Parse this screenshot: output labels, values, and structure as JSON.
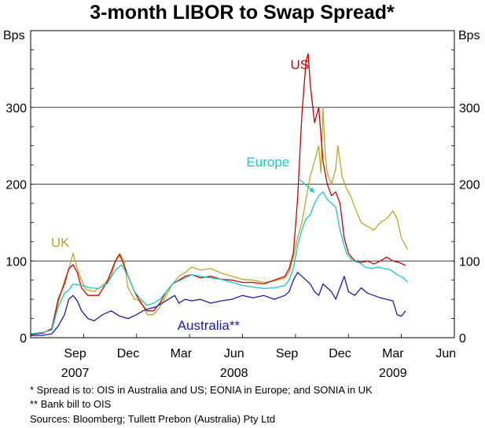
{
  "chart_data": {
    "type": "line",
    "title": "3-month LIBOR to Swap Spread*",
    "y_unit_left": "Bps",
    "y_unit_right": "Bps",
    "ylim": [
      0,
      400
    ],
    "yticks": [
      0,
      100,
      200,
      300
    ],
    "ytick_labels": [
      "0",
      "100",
      "200",
      "300"
    ],
    "grid_y": true,
    "xlim": [
      2007.5,
      2009.5
    ],
    "x_ticks": [
      {
        "label": "Sep",
        "x": 2007.71
      },
      {
        "label": "Dec",
        "x": 2007.96
      },
      {
        "label": "Mar",
        "x": 2008.21
      },
      {
        "label": "Jun",
        "x": 2008.46
      },
      {
        "label": "Sep",
        "x": 2008.71
      },
      {
        "label": "Dec",
        "x": 2008.96
      },
      {
        "label": "Mar",
        "x": 2009.21
      },
      {
        "label": "Jun",
        "x": 2009.46
      }
    ],
    "year_labels": [
      {
        "label": "2007",
        "x": 2007.71
      },
      {
        "label": "2008",
        "x": 2008.46
      },
      {
        "label": "2009",
        "x": 2009.21
      }
    ],
    "series": [
      {
        "name": "UK",
        "color": "#b5a82a",
        "points": [
          [
            2007.5,
            5
          ],
          [
            2007.56,
            7
          ],
          [
            2007.6,
            10
          ],
          [
            2007.63,
            45
          ],
          [
            2007.66,
            75
          ],
          [
            2007.68,
            88
          ],
          [
            2007.7,
            110
          ],
          [
            2007.72,
            90
          ],
          [
            2007.74,
            75
          ],
          [
            2007.76,
            63
          ],
          [
            2007.8,
            60
          ],
          [
            2007.84,
            68
          ],
          [
            2007.88,
            80
          ],
          [
            2007.9,
            100
          ],
          [
            2007.92,
            110
          ],
          [
            2007.94,
            100
          ],
          [
            2007.96,
            65
          ],
          [
            2007.99,
            50
          ],
          [
            2008.02,
            48
          ],
          [
            2008.05,
            30
          ],
          [
            2008.08,
            30
          ],
          [
            2008.11,
            40
          ],
          [
            2008.14,
            55
          ],
          [
            2008.17,
            70
          ],
          [
            2008.2,
            80
          ],
          [
            2008.23,
            85
          ],
          [
            2008.26,
            92
          ],
          [
            2008.3,
            88
          ],
          [
            2008.35,
            90
          ],
          [
            2008.4,
            84
          ],
          [
            2008.45,
            80
          ],
          [
            2008.5,
            76
          ],
          [
            2008.55,
            75
          ],
          [
            2008.6,
            72
          ],
          [
            2008.65,
            74
          ],
          [
            2008.7,
            78
          ],
          [
            2008.72,
            85
          ],
          [
            2008.74,
            105
          ],
          [
            2008.76,
            130
          ],
          [
            2008.78,
            150
          ],
          [
            2008.8,
            180
          ],
          [
            2008.82,
            210
          ],
          [
            2008.84,
            230
          ],
          [
            2008.86,
            250
          ],
          [
            2008.87,
            215
          ],
          [
            2008.88,
            300
          ],
          [
            2008.89,
            240
          ],
          [
            2008.9,
            215
          ],
          [
            2008.92,
            200
          ],
          [
            2008.94,
            220
          ],
          [
            2008.95,
            250
          ],
          [
            2008.97,
            210
          ],
          [
            2008.99,
            195
          ],
          [
            2009.01,
            185
          ],
          [
            2009.03,
            170
          ],
          [
            2009.06,
            150
          ],
          [
            2009.09,
            145
          ],
          [
            2009.12,
            140
          ],
          [
            2009.15,
            150
          ],
          [
            2009.18,
            155
          ],
          [
            2009.21,
            165
          ],
          [
            2009.23,
            155
          ],
          [
            2009.25,
            130
          ],
          [
            2009.28,
            115
          ]
        ]
      },
      {
        "name": "US",
        "color": "#cc0000",
        "points": [
          [
            2007.5,
            4
          ],
          [
            2007.56,
            6
          ],
          [
            2007.6,
            12
          ],
          [
            2007.63,
            50
          ],
          [
            2007.66,
            70
          ],
          [
            2007.68,
            90
          ],
          [
            2007.7,
            95
          ],
          [
            2007.72,
            85
          ],
          [
            2007.74,
            65
          ],
          [
            2007.77,
            55
          ],
          [
            2007.82,
            55
          ],
          [
            2007.86,
            72
          ],
          [
            2007.9,
            100
          ],
          [
            2007.92,
            108
          ],
          [
            2007.94,
            95
          ],
          [
            2007.96,
            80
          ],
          [
            2007.99,
            60
          ],
          [
            2008.02,
            45
          ],
          [
            2008.05,
            35
          ],
          [
            2008.08,
            35
          ],
          [
            2008.11,
            45
          ],
          [
            2008.14,
            60
          ],
          [
            2008.17,
            70
          ],
          [
            2008.2,
            75
          ],
          [
            2008.23,
            80
          ],
          [
            2008.26,
            82
          ],
          [
            2008.3,
            78
          ],
          [
            2008.35,
            80
          ],
          [
            2008.4,
            76
          ],
          [
            2008.45,
            75
          ],
          [
            2008.5,
            72
          ],
          [
            2008.55,
            72
          ],
          [
            2008.6,
            70
          ],
          [
            2008.65,
            75
          ],
          [
            2008.7,
            80
          ],
          [
            2008.72,
            90
          ],
          [
            2008.74,
            110
          ],
          [
            2008.76,
            180
          ],
          [
            2008.78,
            290
          ],
          [
            2008.8,
            360
          ],
          [
            2008.81,
            370
          ],
          [
            2008.82,
            330
          ],
          [
            2008.84,
            280
          ],
          [
            2008.86,
            300
          ],
          [
            2008.88,
            230
          ],
          [
            2008.9,
            200
          ],
          [
            2008.92,
            185
          ],
          [
            2008.94,
            190
          ],
          [
            2008.96,
            175
          ],
          [
            2008.98,
            130
          ],
          [
            2009.0,
            110
          ],
          [
            2009.03,
            100
          ],
          [
            2009.06,
            98
          ],
          [
            2009.09,
            100
          ],
          [
            2009.12,
            96
          ],
          [
            2009.15,
            100
          ],
          [
            2009.18,
            105
          ],
          [
            2009.21,
            100
          ],
          [
            2009.24,
            98
          ],
          [
            2009.27,
            94
          ]
        ]
      },
      {
        "name": "Europe",
        "color": "#19c7c7",
        "points": [
          [
            2007.5,
            5
          ],
          [
            2007.56,
            7
          ],
          [
            2007.6,
            10
          ],
          [
            2007.63,
            40
          ],
          [
            2007.66,
            58
          ],
          [
            2007.68,
            62
          ],
          [
            2007.7,
            70
          ],
          [
            2007.74,
            68
          ],
          [
            2007.78,
            65
          ],
          [
            2007.82,
            64
          ],
          [
            2007.86,
            70
          ],
          [
            2007.9,
            88
          ],
          [
            2007.93,
            95
          ],
          [
            2007.96,
            80
          ],
          [
            2007.99,
            60
          ],
          [
            2008.02,
            50
          ],
          [
            2008.05,
            42
          ],
          [
            2008.08,
            45
          ],
          [
            2008.11,
            50
          ],
          [
            2008.14,
            60
          ],
          [
            2008.17,
            70
          ],
          [
            2008.2,
            74
          ],
          [
            2008.23,
            78
          ],
          [
            2008.26,
            82
          ],
          [
            2008.3,
            80
          ],
          [
            2008.35,
            78
          ],
          [
            2008.4,
            76
          ],
          [
            2008.45,
            72
          ],
          [
            2008.5,
            68
          ],
          [
            2008.55,
            66
          ],
          [
            2008.6,
            64
          ],
          [
            2008.65,
            65
          ],
          [
            2008.7,
            68
          ],
          [
            2008.72,
            75
          ],
          [
            2008.74,
            90
          ],
          [
            2008.76,
            120
          ],
          [
            2008.78,
            140
          ],
          [
            2008.8,
            155
          ],
          [
            2008.82,
            160
          ],
          [
            2008.84,
            175
          ],
          [
            2008.86,
            185
          ],
          [
            2008.88,
            190
          ],
          [
            2008.9,
            180
          ],
          [
            2008.92,
            175
          ],
          [
            2008.94,
            170
          ],
          [
            2008.96,
            140
          ],
          [
            2008.99,
            110
          ],
          [
            2009.02,
            100
          ],
          [
            2009.05,
            98
          ],
          [
            2009.08,
            92
          ],
          [
            2009.11,
            90
          ],
          [
            2009.14,
            92
          ],
          [
            2009.17,
            90
          ],
          [
            2009.2,
            88
          ],
          [
            2009.23,
            82
          ],
          [
            2009.26,
            78
          ],
          [
            2009.28,
            72
          ]
        ]
      },
      {
        "name": "Australia**",
        "color": "#1a1aaa",
        "points": [
          [
            2007.5,
            3
          ],
          [
            2007.55,
            3
          ],
          [
            2007.6,
            5
          ],
          [
            2007.63,
            15
          ],
          [
            2007.66,
            30
          ],
          [
            2007.68,
            50
          ],
          [
            2007.7,
            55
          ],
          [
            2007.72,
            48
          ],
          [
            2007.74,
            35
          ],
          [
            2007.77,
            25
          ],
          [
            2007.8,
            22
          ],
          [
            2007.84,
            30
          ],
          [
            2007.88,
            35
          ],
          [
            2007.92,
            28
          ],
          [
            2007.96,
            25
          ],
          [
            2008.0,
            30
          ],
          [
            2008.03,
            35
          ],
          [
            2008.06,
            38
          ],
          [
            2008.09,
            40
          ],
          [
            2008.12,
            45
          ],
          [
            2008.15,
            50
          ],
          [
            2008.18,
            55
          ],
          [
            2008.2,
            45
          ],
          [
            2008.23,
            50
          ],
          [
            2008.26,
            48
          ],
          [
            2008.3,
            50
          ],
          [
            2008.35,
            45
          ],
          [
            2008.4,
            48
          ],
          [
            2008.45,
            50
          ],
          [
            2008.5,
            55
          ],
          [
            2008.55,
            52
          ],
          [
            2008.6,
            55
          ],
          [
            2008.65,
            50
          ],
          [
            2008.7,
            55
          ],
          [
            2008.72,
            60
          ],
          [
            2008.74,
            75
          ],
          [
            2008.76,
            85
          ],
          [
            2008.78,
            80
          ],
          [
            2008.8,
            75
          ],
          [
            2008.82,
            70
          ],
          [
            2008.84,
            60
          ],
          [
            2008.86,
            55
          ],
          [
            2008.88,
            70
          ],
          [
            2008.9,
            65
          ],
          [
            2008.92,
            60
          ],
          [
            2008.94,
            50
          ],
          [
            2008.96,
            65
          ],
          [
            2008.98,
            80
          ],
          [
            2009.0,
            60
          ],
          [
            2009.03,
            55
          ],
          [
            2009.06,
            65
          ],
          [
            2009.09,
            58
          ],
          [
            2009.12,
            55
          ],
          [
            2009.15,
            52
          ],
          [
            2009.18,
            50
          ],
          [
            2009.21,
            48
          ],
          [
            2009.23,
            30
          ],
          [
            2009.25,
            28
          ],
          [
            2009.27,
            35
          ]
        ]
      }
    ],
    "series_labels": [
      {
        "name": "US",
        "x": 2008.77,
        "y": 350
      },
      {
        "name": "Europe",
        "x": 2008.62,
        "y": 223
      },
      {
        "name": "UK",
        "x": 2007.64,
        "y": 118
      },
      {
        "name": "Australia**",
        "x": 2008.34,
        "y": 10
      }
    ],
    "arrow": {
      "from": [
        2008.77,
        206
      ],
      "to": [
        2008.84,
        189
      ]
    }
  },
  "footnotes": [
    "*   Spread is to: OIS in Australia and US; EONIA in Europe; and SONIA in UK",
    "** Bank bill to OIS",
    "Sources: Bloomberg; Tullett Prebon (Australia) Pty Ltd"
  ]
}
